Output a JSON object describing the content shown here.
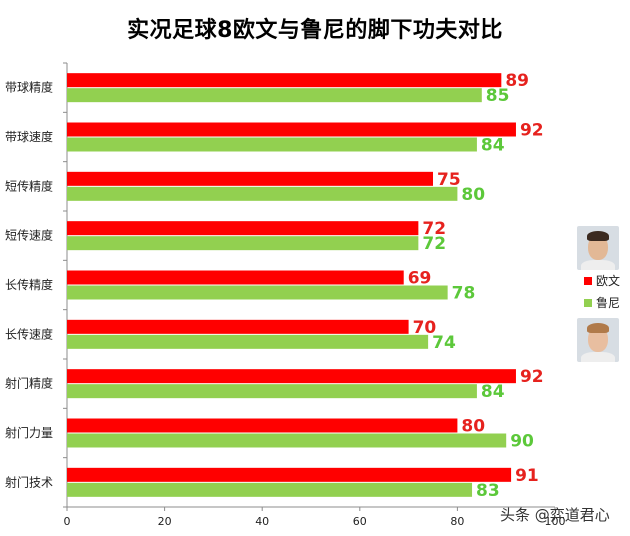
{
  "watermark": "头条 @弈道君心",
  "colors": {
    "series1": "#ff0000",
    "series2": "#92d050",
    "label1": "#e6221e",
    "label2": "#5cc83a",
    "grid": "#d9d9d9"
  },
  "legend": {
    "avatar_top_icon": "player-portrait-owen",
    "avatar_bottom_icon": "player-portrait-rooney"
  },
  "chart_data": {
    "type": "bar",
    "orientation": "horizontal",
    "title": "实况足球8欧文与鲁尼的脚下功夫对比",
    "categories": [
      "带球精度",
      "带球速度",
      "短传精度",
      "短传速度",
      "长传精度",
      "长传速度",
      "射门精度",
      "射门力量",
      "射门技术"
    ],
    "series": [
      {
        "name": "欧文",
        "values": [
          89,
          92,
          75,
          72,
          69,
          70,
          92,
          80,
          91
        ]
      },
      {
        "name": "鲁尼",
        "values": [
          85,
          84,
          80,
          72,
          78,
          74,
          84,
          90,
          83
        ]
      }
    ],
    "xlim": [
      0,
      100
    ],
    "xticks": [
      0,
      20,
      40,
      60,
      80,
      100
    ],
    "grid": false,
    "legend_position": "right"
  }
}
